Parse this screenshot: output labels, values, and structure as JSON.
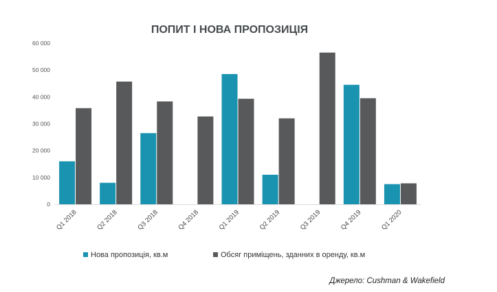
{
  "chart_data": {
    "type": "bar",
    "title": "ПОПИТ І НОВА ПРОПОЗИЦІЯ",
    "categories": [
      "Q1 2018",
      "Q2 2018",
      "Q3 2018",
      "Q4 2018",
      "Q1 2019",
      "Q2 2019",
      "Q3 2019",
      "Q4 2019",
      "Q1 2020"
    ],
    "series": [
      {
        "name": "Нова пропозиція, кв.м",
        "color": "#1a93b0",
        "values": [
          16000,
          8000,
          26500,
          0,
          48500,
          11000,
          0,
          44500,
          7500
        ]
      },
      {
        "name": "Обсяг приміщень, зданних в оренду, кв.м",
        "color": "#58595b",
        "values": [
          35800,
          45700,
          38300,
          32700,
          39300,
          32000,
          56500,
          39500,
          7800
        ]
      }
    ],
    "ylim": [
      0,
      60000
    ],
    "yticks": [
      0,
      10000,
      20000,
      30000,
      40000,
      50000,
      60000
    ],
    "ytick_labels": [
      "0",
      "10 000",
      "20 000",
      "30 000",
      "40 000",
      "50 000",
      "60 000"
    ],
    "xlabel": "",
    "ylabel": "",
    "grid": false,
    "legend_position": "bottom",
    "source": "Джерело: Cushman & Wakefield"
  }
}
